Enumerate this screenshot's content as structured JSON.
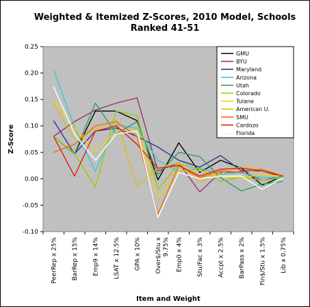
{
  "chart_data": {
    "type": "line",
    "title": [
      "Weighted & Itemized Z-Scores, 2010 Model, Schools",
      "Ranked 41-51"
    ],
    "xlabel": "Item and Weight",
    "ylabel": "Z-Score",
    "ylim": [
      -0.1,
      0.25
    ],
    "yticks": [
      "0.25",
      "0.20",
      "0.15",
      "0.10",
      "0.05",
      "0.00",
      "-0.05",
      "-0.10"
    ],
    "grid": false,
    "legend_position": "top-right",
    "categories": [
      [
        "PeerRep x 25%"
      ],
      [
        "BarRep x 15%"
      ],
      [
        "Emp9 x 14%"
      ],
      [
        "LSAT x 12.5%"
      ],
      [
        "GPA x 10%"
      ],
      [
        "Over$/Stu x",
        "9.75%"
      ],
      [
        "Emp0 x 4%"
      ],
      [
        "Stu/Fac x 3%"
      ],
      [
        "Accpt x 2.5%"
      ],
      [
        "BarPass x 2%"
      ],
      [
        "Fin$/Stu x 1.5%"
      ],
      [
        "Lib x 0.75%"
      ]
    ],
    "series": [
      {
        "name": "GMU",
        "color": "#000000",
        "values": [
          0.08,
          0.047,
          0.128,
          0.128,
          0.11,
          -0.002,
          0.068,
          0.012,
          0.035,
          0.02,
          -0.012,
          0.005
        ]
      },
      {
        "name": "BYU",
        "color": "#993366",
        "values": [
          0.08,
          0.108,
          0.13,
          0.143,
          0.153,
          0.015,
          0.03,
          -0.025,
          0.012,
          0.013,
          -0.003,
          0.005
        ]
      },
      {
        "name": "Maryland",
        "color": "#333399",
        "values": [
          0.11,
          0.047,
          0.09,
          0.096,
          0.08,
          0.06,
          0.035,
          0.022,
          0.044,
          0.015,
          0.015,
          0.003
        ]
      },
      {
        "name": "Arizona",
        "color": "#33cccc",
        "values": [
          0.206,
          0.098,
          0.014,
          0.103,
          0.095,
          0.035,
          0.013,
          0.02,
          0.008,
          0.012,
          0.002,
          0.003
        ]
      },
      {
        "name": "Utah",
        "color": "#339966",
        "values": [
          0.08,
          0.047,
          0.143,
          0.085,
          0.108,
          0.008,
          0.05,
          0.042,
          0.002,
          -0.023,
          -0.01,
          -0.005
        ]
      },
      {
        "name": "Colorado",
        "color": "#99cc00",
        "values": [
          0.08,
          0.048,
          -0.016,
          0.128,
          0.12,
          -0.02,
          0.028,
          0.018,
          -0.005,
          0.003,
          -0.003,
          0.002
        ]
      },
      {
        "name": "Tulane",
        "color": "#ffcc00",
        "values": [
          0.15,
          0.096,
          0.05,
          0.09,
          0.093,
          -0.036,
          0.015,
          0.015,
          0.005,
          0.002,
          0.008,
          0.005
        ]
      },
      {
        "name": "American U.",
        "color": "#e0c000",
        "values": [
          0.142,
          0.075,
          0.092,
          0.112,
          -0.014,
          0.02,
          0.03,
          -0.005,
          0.01,
          0.023,
          0.018,
          0.005
        ]
      },
      {
        "name": "SMU",
        "color": "#ff6600",
        "values": [
          0.05,
          0.065,
          0.1,
          0.108,
          0.08,
          -0.067,
          0.025,
          0.002,
          0.015,
          0.012,
          0.018,
          0.005
        ]
      },
      {
        "name": "Cardozo",
        "color": "#dd2211",
        "values": [
          0.08,
          0.005,
          0.09,
          0.1,
          0.065,
          0.02,
          0.025,
          0.005,
          0.018,
          0.02,
          0.015,
          0.005
        ]
      },
      {
        "name": "Florida",
        "color": "#ffffff",
        "values": [
          0.174,
          0.085,
          0.035,
          0.085,
          0.09,
          -0.073,
          0.012,
          0.0,
          0.005,
          0.005,
          -0.02,
          0.002
        ]
      }
    ]
  }
}
